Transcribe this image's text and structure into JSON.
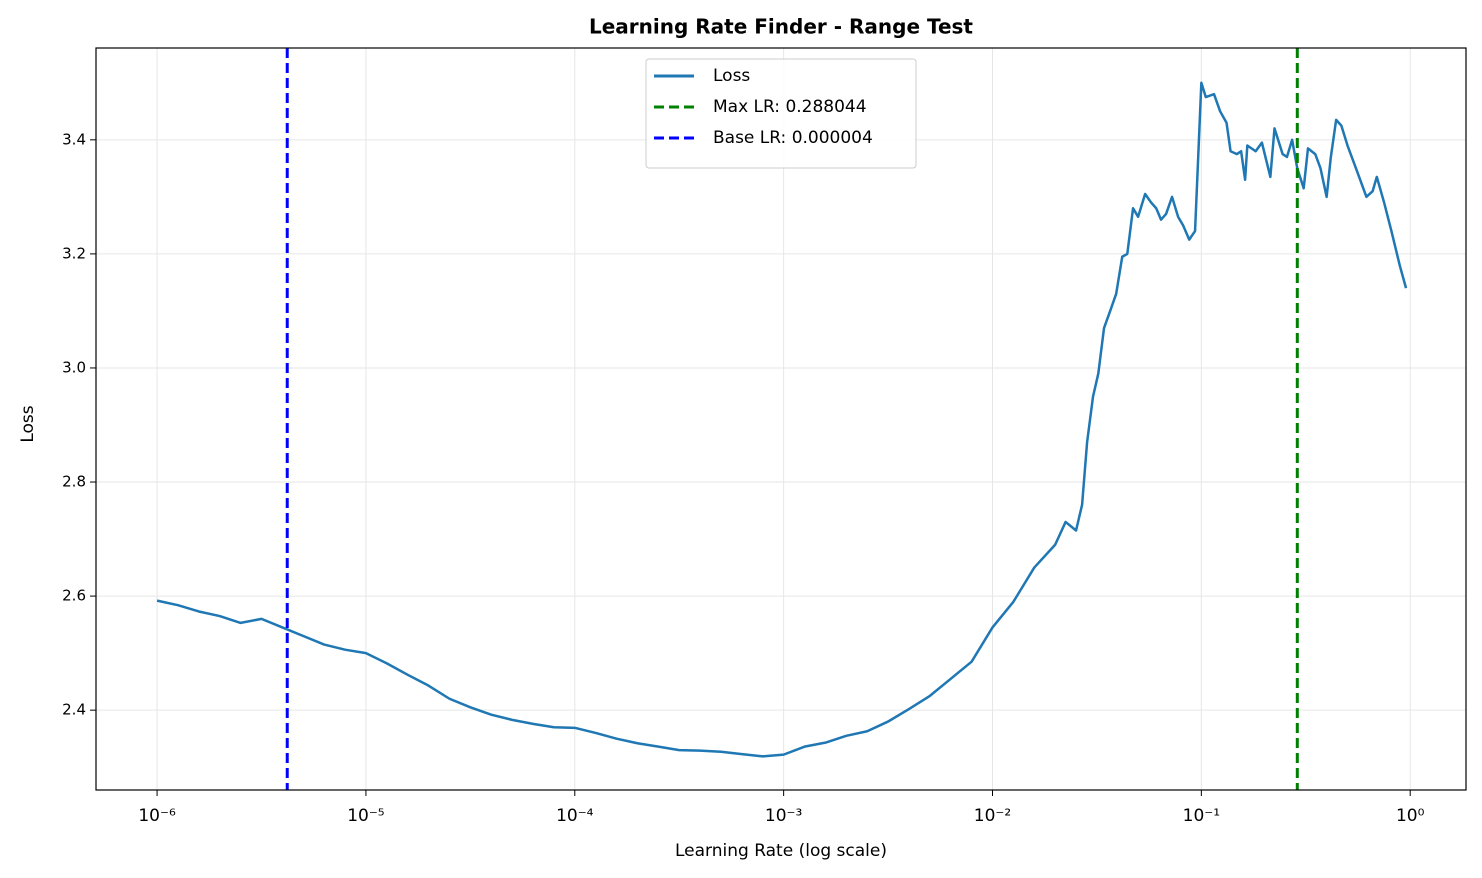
{
  "chart_data": {
    "type": "line",
    "title": "Learning Rate Finder - Range Test",
    "xlabel": "Learning Rate (log scale)",
    "ylabel": "Loss",
    "xscale": "log",
    "grid": true,
    "legend": "upper center",
    "xlim": [
      5.1e-07,
      1.85
    ],
    "ylim": [
      2.26,
      3.561
    ],
    "xticks": [
      {
        "value": 1e-06,
        "label": "10⁻⁶"
      },
      {
        "value": 1e-05,
        "label": "10⁻⁵"
      },
      {
        "value": 0.0001,
        "label": "10⁻⁴"
      },
      {
        "value": 0.001,
        "label": "10⁻³"
      },
      {
        "value": 0.01,
        "label": "10⁻²"
      },
      {
        "value": 0.1,
        "label": "10⁻¹"
      },
      {
        "value": 1,
        "label": "10⁰"
      }
    ],
    "yticks": [
      2.4,
      2.6,
      2.8,
      {
        "value": 3,
        "label": "3.0"
      },
      3.2,
      3.4
    ],
    "x": [
      1e-06,
      1.259e-06,
      1.585e-06,
      1.995e-06,
      2.512e-06,
      3.162e-06,
      3.981e-06,
      5.012e-06,
      6.31e-06,
      7.943e-06,
      1e-05,
      1.259e-05,
      1.585e-05,
      1.995e-05,
      2.512e-05,
      3.162e-05,
      3.981e-05,
      5.012e-05,
      6.31e-05,
      7.943e-05,
      0.0001,
      0.0001259,
      0.0001585,
      0.0001995,
      0.0002512,
      0.0003162,
      0.0003981,
      0.0005012,
      0.000631,
      0.0007943,
      0.001,
      0.001259,
      0.001585,
      0.001995,
      0.002512,
      0.003162,
      0.003981,
      0.005012,
      0.00631,
      0.007943,
      0.01,
      0.01259,
      0.01585,
      0.01995,
      0.02239,
      0.02512,
      0.02685,
      0.02838,
      0.0303,
      0.0321,
      0.0342,
      0.0366,
      0.0391,
      0.0418,
      0.0442,
      0.0471,
      0.0498,
      0.0538,
      0.0575,
      0.0608,
      0.0641,
      0.0678,
      0.0724,
      0.0774,
      0.0818,
      0.0875,
      0.0933,
      0.1,
      0.105,
      0.115,
      0.123,
      0.132,
      0.138,
      0.148,
      0.155,
      0.162,
      0.166,
      0.182,
      0.195,
      0.214,
      0.224,
      0.245,
      0.257,
      0.272,
      0.288,
      0.309,
      0.324,
      0.351,
      0.372,
      0.398,
      0.417,
      0.442,
      0.468,
      0.501,
      0.55,
      0.617,
      0.661,
      0.692,
      0.75,
      0.813,
      0.891,
      0.955
    ],
    "series": [
      {
        "name": "Loss",
        "color": "#1f77b4",
        "values": [
          2.592,
          2.584,
          2.573,
          2.565,
          2.553,
          2.56,
          2.545,
          2.53,
          2.515,
          2.506,
          2.5,
          2.482,
          2.462,
          2.443,
          2.42,
          2.405,
          2.392,
          2.383,
          2.376,
          2.37,
          2.369,
          2.36,
          2.35,
          2.342,
          2.336,
          2.33,
          2.329,
          2.327,
          2.323,
          2.319,
          2.322,
          2.336,
          2.343,
          2.355,
          2.363,
          2.38,
          2.402,
          2.425,
          2.455,
          2.485,
          2.545,
          2.59,
          2.65,
          2.69,
          2.73,
          2.715,
          2.76,
          2.87,
          2.95,
          2.99,
          3.07,
          3.1,
          3.13,
          3.195,
          3.2,
          3.28,
          3.265,
          3.305,
          3.29,
          3.28,
          3.26,
          3.27,
          3.3,
          3.265,
          3.25,
          3.225,
          3.24,
          3.5,
          3.475,
          3.48,
          3.45,
          3.43,
          3.38,
          3.375,
          3.38,
          3.33,
          3.39,
          3.38,
          3.395,
          3.335,
          3.42,
          3.375,
          3.37,
          3.4,
          3.35,
          3.315,
          3.385,
          3.375,
          3.35,
          3.3,
          3.37,
          3.435,
          3.425,
          3.39,
          3.35,
          3.3,
          3.31,
          3.335,
          3.29,
          3.24,
          3.18,
          3.14
        ]
      }
    ],
    "vlines": [
      {
        "name": "Max LR: 0.288044",
        "color": "#008000",
        "value": 0.288044
      },
      {
        "name": "Base LR: 0.000004",
        "color": "#0000ff",
        "value": 4.2e-06
      }
    ]
  }
}
